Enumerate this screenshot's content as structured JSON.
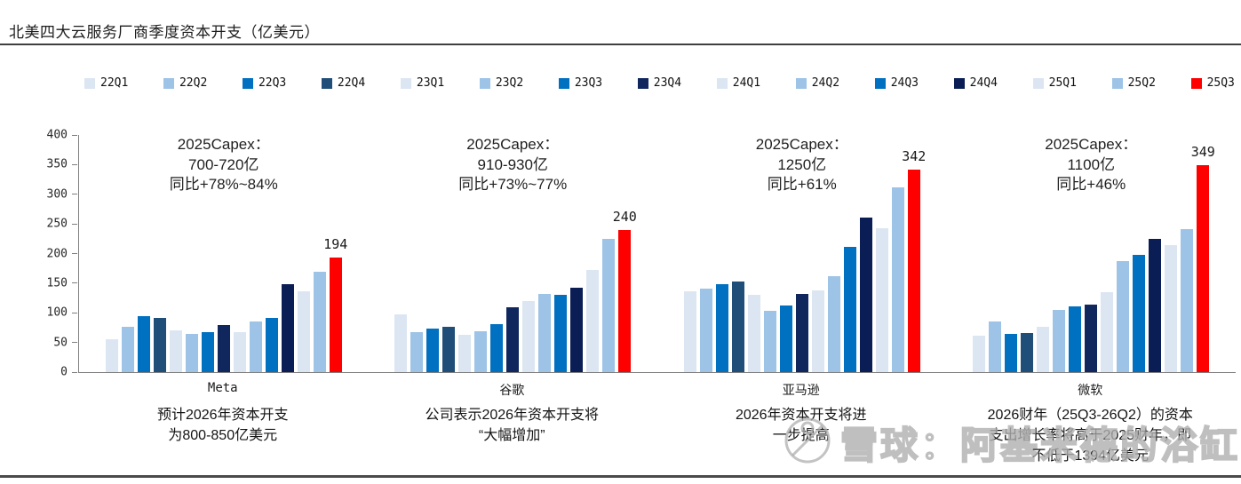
{
  "title": "北美四大云服务厂商季度资本开支（亿美元）",
  "watermark": {
    "icon": "snowball-logo",
    "text": "雪球：阿基米德的浴缸"
  },
  "colors": {
    "q1_light": "#dce6f2",
    "q2_mid": "#9dc3e6",
    "q3_blue": "#0070c0",
    "q4_2022": "#1f4e79",
    "q4_2023": "#10275e",
    "q4_2024": "#0a1e55",
    "highlight_red": "#fe0000",
    "axis_gray": "#7f7f7f"
  },
  "chart_data": {
    "type": "bar",
    "title": "北美四大云服务厂商季度资本开支（亿美元）",
    "xlabel": "",
    "ylabel": "亿美元",
    "ylim": [
      0,
      400
    ],
    "yticks": [
      0,
      50,
      100,
      150,
      200,
      250,
      300,
      350,
      400
    ],
    "grid": false,
    "legend_position": "top",
    "highlight_category": "25Q3",
    "categories": [
      "22Q1",
      "22Q2",
      "22Q3",
      "22Q4",
      "23Q1",
      "23Q2",
      "23Q3",
      "23Q4",
      "24Q1",
      "24Q2",
      "24Q3",
      "24Q4",
      "25Q1",
      "25Q2",
      "25Q3"
    ],
    "bar_colors": [
      "#dce6f2",
      "#9dc3e6",
      "#0070c0",
      "#1f4e79",
      "#dce6f2",
      "#9dc3e6",
      "#0070c0",
      "#10275e",
      "#dce6f2",
      "#9dc3e6",
      "#0070c0",
      "#0a1e55",
      "#dce6f2",
      "#9dc3e6",
      "#fe0000"
    ],
    "groups": [
      {
        "name": "Meta",
        "values": [
          55,
          77,
          95,
          92,
          71,
          64,
          68,
          79,
          67,
          85,
          92,
          148,
          137,
          170,
          194
        ],
        "last_value_label": "194",
        "annotation_lines": [
          "2025Capex：",
          "700-720亿",
          "同比+78%~84%"
        ],
        "footnote_lines": [
          "预计2026年资本开支",
          "为800-850亿美元"
        ]
      },
      {
        "name": "谷歌",
        "values": [
          98,
          68,
          73,
          76,
          63,
          69,
          81,
          110,
          120,
          132,
          131,
          143,
          172,
          224,
          240
        ],
        "last_value_label": "240",
        "annotation_lines": [
          "2025Capex：",
          "910-930亿",
          "同比+73%~77%"
        ],
        "footnote_lines": [
          "公司表示2026年资本开支将",
          "“大幅增加”"
        ]
      },
      {
        "name": "亚马逊",
        "values": [
          137,
          141,
          148,
          153,
          130,
          103,
          113,
          132,
          138,
          162,
          211,
          260,
          243,
          312,
          342
        ],
        "last_value_label": "342",
        "annotation_lines": [
          "2025Capex：",
          "1250亿",
          "同比+61%"
        ],
        "footnote_lines": [
          "2026年资本开支将进",
          "一步提高"
        ]
      },
      {
        "name": "微软",
        "values": [
          62,
          86,
          64,
          66,
          77,
          105,
          111,
          114,
          135,
          188,
          198,
          224,
          214,
          241,
          349
        ],
        "last_value_label": "349",
        "annotation_lines": [
          "2025Capex：",
          "1100亿",
          "同比+46%"
        ],
        "footnote_lines": [
          "2026财年（25Q3-26Q2）的资本",
          "支出增长率将高于2025财年，即",
          "不低于1394亿美元"
        ]
      }
    ]
  }
}
